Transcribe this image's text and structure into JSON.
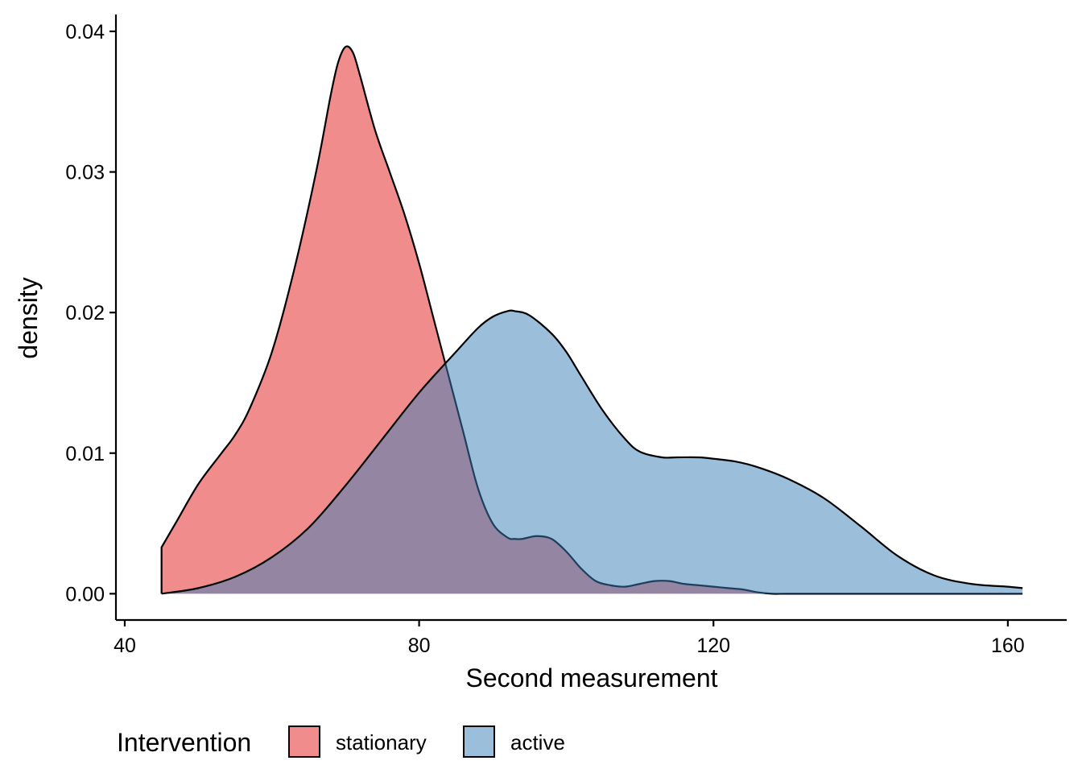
{
  "chart_data": {
    "type": "area",
    "title": "",
    "xlabel": "Second measurement",
    "ylabel": "density",
    "xlim": [
      38.8,
      168
    ],
    "ylim": [
      -0.00187,
      0.0412
    ],
    "x_ticks": [
      40,
      80,
      120,
      160
    ],
    "x_tick_labels": [
      "40",
      "80",
      "120",
      "160"
    ],
    "y_ticks": [
      0,
      0.01,
      0.02,
      0.03,
      0.04
    ],
    "y_tick_labels": [
      "0.00",
      "0.01",
      "0.02",
      "0.03",
      "0.04"
    ],
    "grid": false,
    "legend": {
      "title": "Intervention",
      "position": "bottom",
      "entries": [
        "stationary",
        "active"
      ]
    },
    "series": [
      {
        "name": "stationary",
        "color": "#E41A1C",
        "fill_opacity": 0.5,
        "x": [
          45,
          47,
          50,
          53,
          55,
          57,
          60,
          63,
          66,
          68,
          69,
          70,
          71,
          72,
          74,
          76,
          78,
          80,
          82,
          84,
          86,
          88,
          90,
          92,
          93,
          94,
          96,
          98,
          100,
          102,
          104,
          106,
          108,
          110,
          112,
          114,
          116,
          118,
          120,
          122,
          124,
          126,
          128,
          130,
          135,
          140,
          150,
          162
        ],
        "y": [
          0.0033,
          0.0051,
          0.0078,
          0.0099,
          0.0113,
          0.0132,
          0.0172,
          0.023,
          0.03,
          0.0355,
          0.0378,
          0.0389,
          0.0385,
          0.0368,
          0.033,
          0.03,
          0.027,
          0.0235,
          0.0195,
          0.0155,
          0.0115,
          0.0075,
          0.005,
          0.004,
          0.0039,
          0.0039,
          0.0041,
          0.0039,
          0.003,
          0.0018,
          0.0009,
          0.0006,
          0.0005,
          0.0007,
          0.0009,
          0.0009,
          0.0007,
          0.0006,
          0.0005,
          0.0004,
          0.0003,
          0.0001,
          0.0,
          0.0,
          0.0,
          0.0,
          0.0,
          0.0
        ]
      },
      {
        "name": "active",
        "color": "#377EB8",
        "fill_opacity": 0.5,
        "x": [
          45,
          50,
          55,
          60,
          65,
          70,
          75,
          80,
          85,
          88,
          90,
          92,
          93,
          95,
          98,
          100,
          102,
          105,
          108,
          110,
          113,
          115,
          118,
          120,
          123,
          126,
          130,
          135,
          140,
          145,
          150,
          155,
          160,
          162
        ],
        "y": [
          0.0,
          0.0004,
          0.0012,
          0.0026,
          0.0047,
          0.0077,
          0.011,
          0.0143,
          0.0172,
          0.0189,
          0.0197,
          0.0201,
          0.0201,
          0.0198,
          0.0185,
          0.0172,
          0.0155,
          0.013,
          0.011,
          0.0101,
          0.0097,
          0.0097,
          0.0097,
          0.0096,
          0.0094,
          0.009,
          0.0082,
          0.0068,
          0.0048,
          0.0027,
          0.0013,
          0.0007,
          0.0005,
          0.0004
        ]
      }
    ]
  }
}
